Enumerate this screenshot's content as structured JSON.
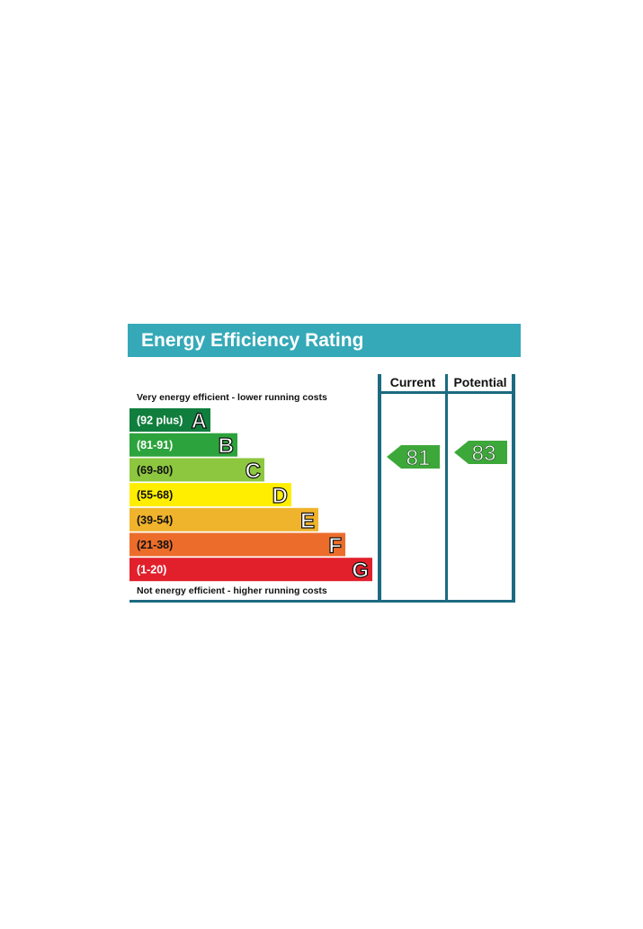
{
  "title": "Energy Efficiency Rating",
  "top_note": "Very energy efficient - lower running costs",
  "bottom_note": "Not energy efficient - higher running costs",
  "columns": {
    "current": "Current",
    "potential": "Potential"
  },
  "colors": {
    "header": "#35a9b8",
    "frame": "#1c6a80",
    "arrow": "#3da83a"
  },
  "chart_data": {
    "type": "bar",
    "title": "Energy Efficiency Rating",
    "bands": [
      {
        "letter": "A",
        "range": "(92 plus)",
        "min": 92,
        "max": 100,
        "color": "#107e3d"
      },
      {
        "letter": "B",
        "range": "(81-91)",
        "min": 81,
        "max": 91,
        "color": "#2ca33c"
      },
      {
        "letter": "C",
        "range": "(69-80)",
        "min": 69,
        "max": 80,
        "color": "#8dc73f"
      },
      {
        "letter": "D",
        "range": "(55-68)",
        "min": 55,
        "max": 68,
        "color": "#ffee00"
      },
      {
        "letter": "E",
        "range": "(39-54)",
        "min": 39,
        "max": 54,
        "color": "#f0b32c"
      },
      {
        "letter": "F",
        "range": "(21-38)",
        "min": 21,
        "max": 38,
        "color": "#ec6d2b"
      },
      {
        "letter": "G",
        "range": "(1-20)",
        "min": 1,
        "max": 20,
        "color": "#e2202c"
      }
    ],
    "current": 81,
    "potential": 83
  }
}
